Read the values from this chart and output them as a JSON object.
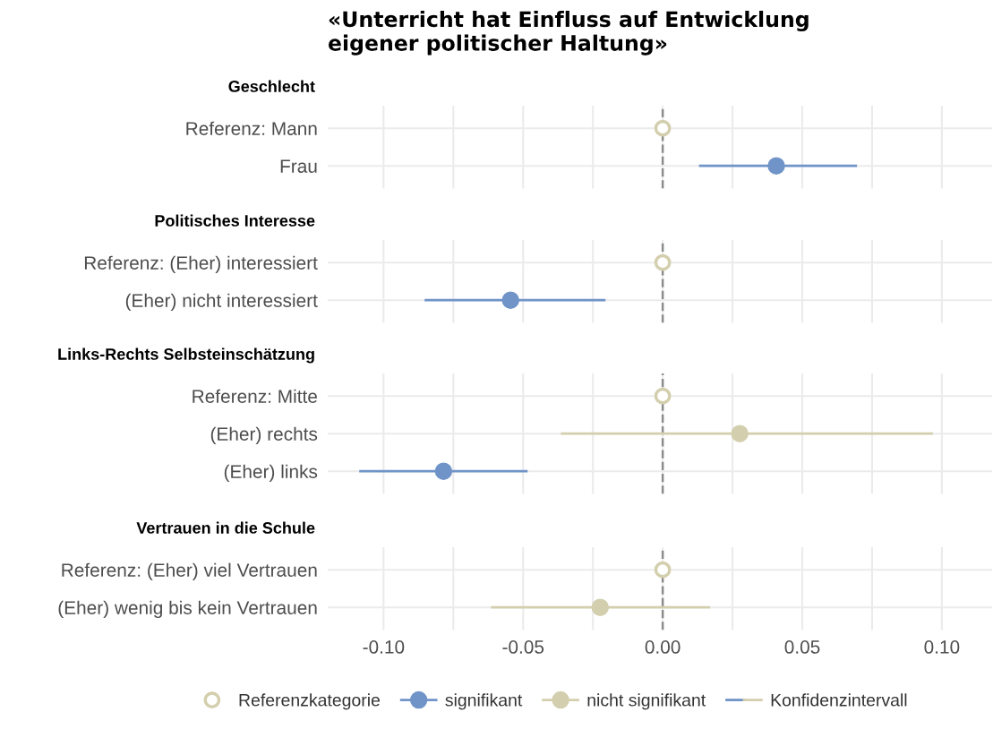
{
  "chart_data": [
    {
      "type": "scatter",
      "orientation": "horizontal",
      "title": "«Unterricht hat Einfluss auf Entwicklung\neigener politischer Haltung»",
      "subtitle": "Geschlecht",
      "categories": [
        "Referenz: Mann",
        "Frau"
      ],
      "marker": "circle",
      "grid": true,
      "tick_labels": "y",
      "xlim": [
        -0.12,
        0.118
      ],
      "xticks": [
        {
          "value": -0.1,
          "label": null
        },
        {
          "value": -0.075,
          "label": null
        },
        {
          "value": -0.05,
          "label": null
        },
        {
          "value": -0.025,
          "label": null
        },
        {
          "value": 0,
          "label": null
        },
        {
          "value": 0.025,
          "label": null
        },
        {
          "value": 0.05,
          "label": null
        },
        {
          "value": 0.075,
          "label": null
        },
        {
          "value": 0.1,
          "label": null
        }
      ],
      "ref_lines": [
        {
          "axis": "x",
          "value": 0,
          "color": "#8c8c8c",
          "line_style": "dashed"
        }
      ],
      "series": [
        {
          "color": "#d3cfae",
          "values": [
            0,
            null
          ]
        },
        {
          "color": "#7094c8",
          "values": [
            null,
            0.0407
          ],
          "errors": [
            null,
            [
              0.013,
              0.0696
            ]
          ]
        },
        {
          "color": "#d3cfae",
          "values": [
            null,
            null
          ],
          "errors": [
            null,
            null
          ]
        }
      ]
    },
    {
      "type": "scatter",
      "orientation": "horizontal",
      "subtitle": "Politisches Interesse",
      "categories": [
        "Referenz: (Eher) interessiert",
        "(Eher) nicht interessiert"
      ],
      "marker": "circle",
      "grid": true,
      "tick_labels": "y",
      "xlim": [
        -0.12,
        0.118
      ],
      "xticks": [
        {
          "value": -0.1,
          "label": null
        },
        {
          "value": -0.075,
          "label": null
        },
        {
          "value": -0.05,
          "label": null
        },
        {
          "value": -0.025,
          "label": null
        },
        {
          "value": 0,
          "label": null
        },
        {
          "value": 0.025,
          "label": null
        },
        {
          "value": 0.05,
          "label": null
        },
        {
          "value": 0.075,
          "label": null
        },
        {
          "value": 0.1,
          "label": null
        }
      ],
      "ref_lines": [
        {
          "axis": "x",
          "value": 0,
          "color": "#8c8c8c",
          "line_style": "dashed"
        }
      ],
      "series": [
        {
          "color": "#d3cfae",
          "values": [
            0,
            null
          ]
        },
        {
          "color": "#7094c8",
          "values": [
            null,
            -0.0545
          ],
          "errors": [
            null,
            [
              -0.0853,
              -0.0205
            ]
          ]
        },
        {
          "color": "#d3cfae",
          "values": [
            null,
            null
          ],
          "errors": [
            null,
            null
          ]
        }
      ]
    },
    {
      "type": "scatter",
      "orientation": "horizontal",
      "subtitle": "Links-Rechts Selbsteinschätzung",
      "categories": [
        "Referenz: Mitte",
        "(Eher) rechts",
        "(Eher) links"
      ],
      "marker": "circle",
      "grid": true,
      "tick_labels": "y",
      "xlim": [
        -0.12,
        0.118
      ],
      "xticks": [
        {
          "value": -0.1,
          "label": null
        },
        {
          "value": -0.075,
          "label": null
        },
        {
          "value": -0.05,
          "label": null
        },
        {
          "value": -0.025,
          "label": null
        },
        {
          "value": 0,
          "label": null
        },
        {
          "value": 0.025,
          "label": null
        },
        {
          "value": 0.05,
          "label": null
        },
        {
          "value": 0.075,
          "label": null
        },
        {
          "value": 0.1,
          "label": null
        }
      ],
      "ref_lines": [
        {
          "axis": "x",
          "value": 0,
          "color": "#8c8c8c",
          "line_style": "dashed"
        }
      ],
      "series": [
        {
          "color": "#d3cfae",
          "values": [
            0,
            null,
            null
          ]
        },
        {
          "color": "#7094c8",
          "values": [
            null,
            null,
            -0.0785
          ],
          "errors": [
            null,
            null,
            [
              -0.1087,
              -0.0484
            ]
          ]
        },
        {
          "color": "#d3cfae",
          "values": [
            null,
            0.0276,
            null
          ],
          "errors": [
            null,
            [
              -0.0365,
              0.0968
            ],
            null
          ]
        }
      ]
    },
    {
      "type": "scatter",
      "orientation": "horizontal",
      "subtitle": "Vertrauen in die Schule",
      "categories": [
        "Referenz: (Eher) viel Vertrauen",
        "(Eher) wenig bis kein Vertrauen"
      ],
      "marker": "circle",
      "grid": true,
      "legend": "bottom",
      "xlim": [
        -0.12,
        0.118
      ],
      "xticks": [
        {
          "value": -0.1,
          "label": "-0.10"
        },
        {
          "value": -0.075,
          "label": null
        },
        {
          "value": -0.05,
          "label": "-0.05"
        },
        {
          "value": -0.025,
          "label": null
        },
        {
          "value": 0,
          "label": "0.00"
        },
        {
          "value": 0.025,
          "label": null
        },
        {
          "value": 0.05,
          "label": "0.05"
        },
        {
          "value": 0.075,
          "label": null
        },
        {
          "value": 0.1,
          "label": "0.10"
        }
      ],
      "ref_lines": [
        {
          "axis": "x",
          "value": 0,
          "color": "#8c8c8c",
          "line_style": "dashed"
        }
      ],
      "annotations": [
        "Konfidenzintervall"
      ],
      "series": [
        {
          "name": "Referenzkategorie",
          "color": "#d3cfae",
          "values": [
            0,
            null
          ]
        },
        {
          "name": "signifikant",
          "color": "#7094c8",
          "values": [
            null,
            null
          ],
          "errors": [
            null,
            null
          ]
        },
        {
          "name": "nicht signifikant",
          "color": "#d3cfae",
          "values": [
            null,
            -0.0224
          ],
          "errors": [
            null,
            [
              -0.0615,
              0.017
            ]
          ]
        }
      ]
    }
  ]
}
